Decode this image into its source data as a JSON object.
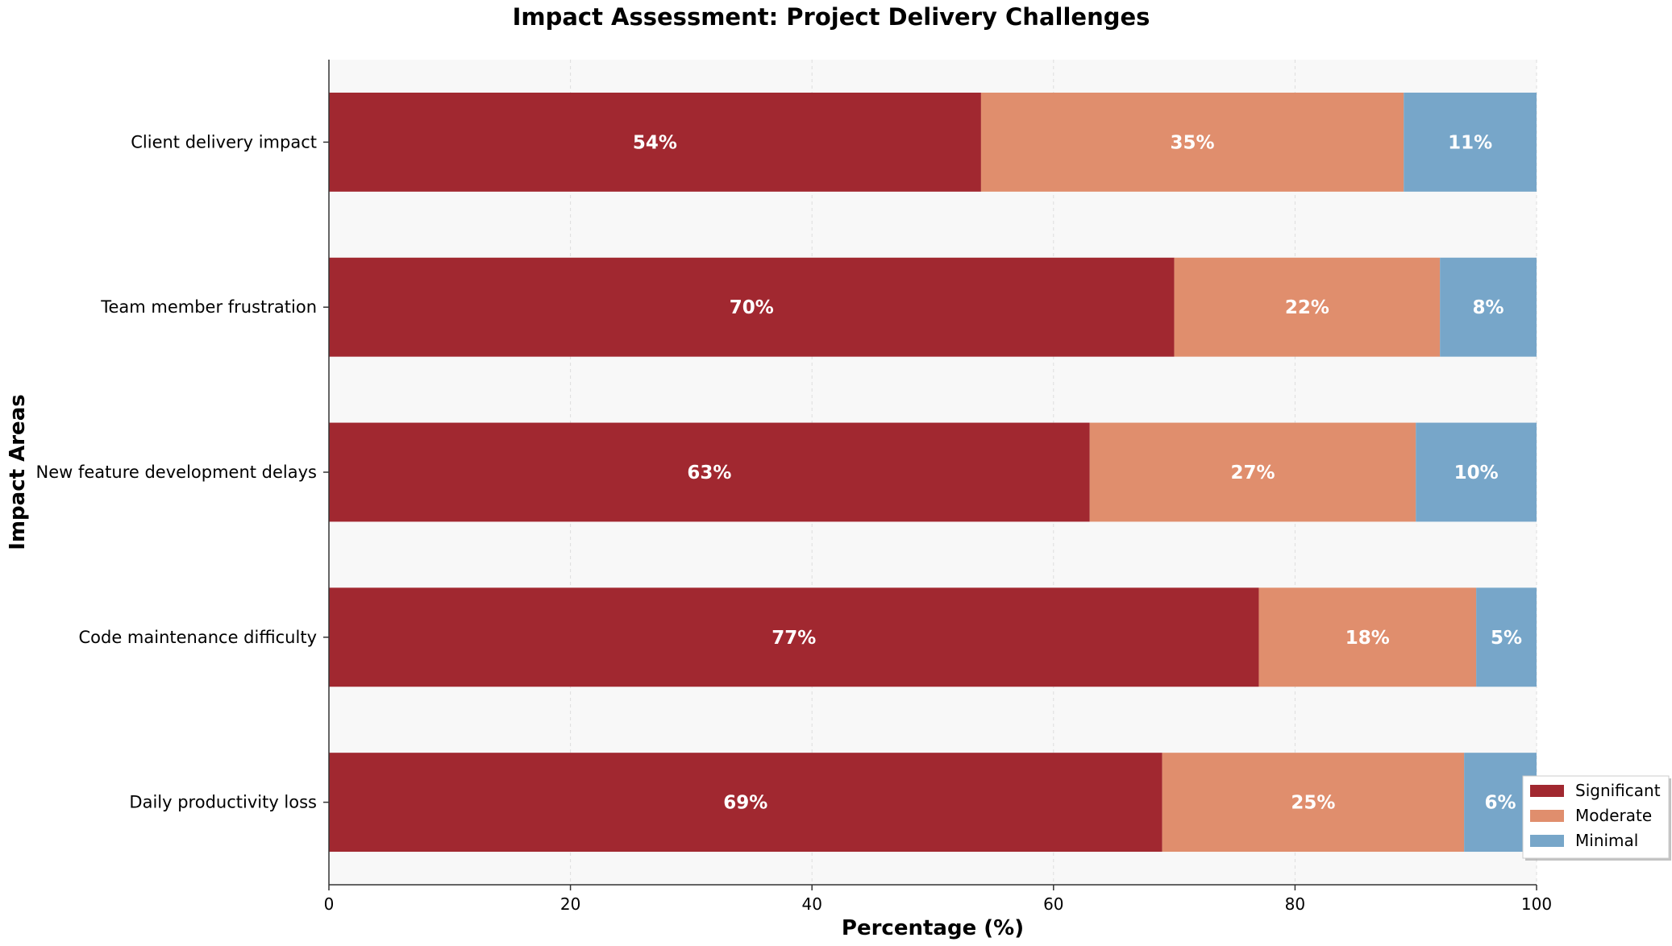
{
  "chart_data": {
    "type": "bar",
    "orientation": "horizontal",
    "stacked": true,
    "title": "Impact Assessment: Project Delivery Challenges",
    "xlabel": "Percentage (%)",
    "ylabel": "Impact Areas",
    "xlim": [
      0,
      100
    ],
    "xticks": [
      0,
      20,
      40,
      60,
      80,
      100
    ],
    "grid": true,
    "legend_position": "bottom-right",
    "categories": [
      "Client delivery impact",
      "Team member frustration",
      "New feature development delays",
      "Code maintenance difficulty",
      "Daily productivity loss"
    ],
    "series": [
      {
        "name": "Significant",
        "color": "#a12830",
        "values": [
          54,
          70,
          63,
          77,
          69
        ]
      },
      {
        "name": "Moderate",
        "color": "#e08e6d",
        "values": [
          35,
          22,
          27,
          18,
          25
        ]
      },
      {
        "name": "Minimal",
        "color": "#77a6c9",
        "values": [
          11,
          8,
          10,
          5,
          6
        ]
      }
    ],
    "value_suffix": "%"
  }
}
